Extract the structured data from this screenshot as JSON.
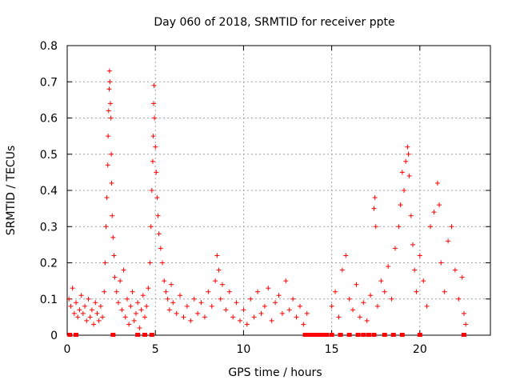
{
  "chart_data": {
    "type": "scatter",
    "title": "Day 060 of 2018, SRMTID for receiver ppte",
    "xlabel": "GPS time / hours",
    "ylabel": "SRMTID / TECUs",
    "xlim": [
      0,
      24
    ],
    "ylim": [
      0,
      0.8
    ],
    "xticks": [
      0,
      5,
      10,
      15,
      20
    ],
    "yticks": [
      0,
      0.1,
      0.2,
      0.3,
      0.4,
      0.5,
      0.6,
      0.7,
      0.8
    ],
    "xtick_labels": [
      "0",
      "5",
      "10",
      "15",
      "20"
    ],
    "ytick_labels": [
      "0",
      "0.1",
      "0.2",
      "0.3",
      "0.4",
      "0.5",
      "0.6",
      "0.7",
      "0.8"
    ],
    "grid": true,
    "color": "#ff0000",
    "marker": "plus",
    "series": [
      {
        "name": "SRMTID",
        "points": [
          [
            0.1,
            0.1
          ],
          [
            0.2,
            0.08
          ],
          [
            0.3,
            0.13
          ],
          [
            0.4,
            0.06
          ],
          [
            0.5,
            0.09
          ],
          [
            0.6,
            0.05
          ],
          [
            0.7,
            0.07
          ],
          [
            0.8,
            0.11
          ],
          [
            0.9,
            0.06
          ],
          [
            1.0,
            0.08
          ],
          [
            1.1,
            0.04
          ],
          [
            1.2,
            0.1
          ],
          [
            1.3,
            0.05
          ],
          [
            1.4,
            0.07
          ],
          [
            1.5,
            0.03
          ],
          [
            1.6,
            0.09
          ],
          [
            1.7,
            0.06
          ],
          [
            1.8,
            0.04
          ],
          [
            1.9,
            0.08
          ],
          [
            2.0,
            0.05
          ],
          [
            2.1,
            0.12
          ],
          [
            2.15,
            0.2
          ],
          [
            2.2,
            0.3
          ],
          [
            2.25,
            0.38
          ],
          [
            2.3,
            0.47
          ],
          [
            2.32,
            0.55
          ],
          [
            2.35,
            0.62
          ],
          [
            2.38,
            0.68
          ],
          [
            2.4,
            0.73
          ],
          [
            2.42,
            0.7
          ],
          [
            2.45,
            0.64
          ],
          [
            2.48,
            0.6
          ],
          [
            2.5,
            0.5
          ],
          [
            2.52,
            0.42
          ],
          [
            2.55,
            0.33
          ],
          [
            2.6,
            0.27
          ],
          [
            2.65,
            0.22
          ],
          [
            2.7,
            0.16
          ],
          [
            2.8,
            0.12
          ],
          [
            2.9,
            0.09
          ],
          [
            3.0,
            0.15
          ],
          [
            3.1,
            0.07
          ],
          [
            3.2,
            0.18
          ],
          [
            3.3,
            0.05
          ],
          [
            3.4,
            0.1
          ],
          [
            3.5,
            0.03
          ],
          [
            3.6,
            0.08
          ],
          [
            3.7,
            0.12
          ],
          [
            3.8,
            0.04
          ],
          [
            3.9,
            0.06
          ],
          [
            4.0,
            0.09
          ],
          [
            4.1,
            0.02
          ],
          [
            4.2,
            0.07
          ],
          [
            4.3,
            0.11
          ],
          [
            4.4,
            0.05
          ],
          [
            4.5,
            0.08
          ],
          [
            4.6,
            0.13
          ],
          [
            4.7,
            0.2
          ],
          [
            4.75,
            0.3
          ],
          [
            4.8,
            0.4
          ],
          [
            4.85,
            0.48
          ],
          [
            4.88,
            0.55
          ],
          [
            4.9,
            0.64
          ],
          [
            4.92,
            0.69
          ],
          [
            4.95,
            0.6
          ],
          [
            5.0,
            0.52
          ],
          [
            5.05,
            0.45
          ],
          [
            5.1,
            0.38
          ],
          [
            5.15,
            0.33
          ],
          [
            5.2,
            0.28
          ],
          [
            5.3,
            0.24
          ],
          [
            5.4,
            0.2
          ],
          [
            5.5,
            0.15
          ],
          [
            5.6,
            0.12
          ],
          [
            5.7,
            0.1
          ],
          [
            5.8,
            0.07
          ],
          [
            5.9,
            0.14
          ],
          [
            6.0,
            0.09
          ],
          [
            6.2,
            0.06
          ],
          [
            6.4,
            0.11
          ],
          [
            6.6,
            0.05
          ],
          [
            6.8,
            0.08
          ],
          [
            7.0,
            0.04
          ],
          [
            7.2,
            0.1
          ],
          [
            7.4,
            0.06
          ],
          [
            7.6,
            0.09
          ],
          [
            7.8,
            0.05
          ],
          [
            8.0,
            0.12
          ],
          [
            8.2,
            0.08
          ],
          [
            8.4,
            0.15
          ],
          [
            8.5,
            0.22
          ],
          [
            8.6,
            0.18
          ],
          [
            8.7,
            0.1
          ],
          [
            8.8,
            0.14
          ],
          [
            9.0,
            0.07
          ],
          [
            9.2,
            0.12
          ],
          [
            9.4,
            0.05
          ],
          [
            9.6,
            0.09
          ],
          [
            9.8,
            0.04
          ],
          [
            10.0,
            0.07
          ],
          [
            10.2,
            0.03
          ],
          [
            10.4,
            0.1
          ],
          [
            10.6,
            0.05
          ],
          [
            10.8,
            0.12
          ],
          [
            11.0,
            0.06
          ],
          [
            11.2,
            0.08
          ],
          [
            11.4,
            0.13
          ],
          [
            11.6,
            0.04
          ],
          [
            11.8,
            0.09
          ],
          [
            12.0,
            0.11
          ],
          [
            12.2,
            0.06
          ],
          [
            12.4,
            0.15
          ],
          [
            12.6,
            0.07
          ],
          [
            12.8,
            0.1
          ],
          [
            13.0,
            0.05
          ],
          [
            13.2,
            0.08
          ],
          [
            13.4,
            0.03
          ],
          [
            13.6,
            0.06
          ],
          [
            15.0,
            0.08
          ],
          [
            15.2,
            0.12
          ],
          [
            15.4,
            0.05
          ],
          [
            15.6,
            0.18
          ],
          [
            15.8,
            0.22
          ],
          [
            16.0,
            0.1
          ],
          [
            16.2,
            0.07
          ],
          [
            16.4,
            0.14
          ],
          [
            16.6,
            0.05
          ],
          [
            16.8,
            0.09
          ],
          [
            17.0,
            0.04
          ],
          [
            17.2,
            0.11
          ],
          [
            17.4,
            0.35
          ],
          [
            17.45,
            0.38
          ],
          [
            17.5,
            0.3
          ],
          [
            17.6,
            0.08
          ],
          [
            17.8,
            0.15
          ],
          [
            18.0,
            0.12
          ],
          [
            18.2,
            0.19
          ],
          [
            18.4,
            0.1
          ],
          [
            18.6,
            0.24
          ],
          [
            18.8,
            0.3
          ],
          [
            18.9,
            0.36
          ],
          [
            19.0,
            0.45
          ],
          [
            19.1,
            0.4
          ],
          [
            19.2,
            0.48
          ],
          [
            19.3,
            0.52
          ],
          [
            19.35,
            0.5
          ],
          [
            19.4,
            0.44
          ],
          [
            19.5,
            0.33
          ],
          [
            19.6,
            0.25
          ],
          [
            19.7,
            0.18
          ],
          [
            19.8,
            0.12
          ],
          [
            20.0,
            0.22
          ],
          [
            20.2,
            0.15
          ],
          [
            20.4,
            0.08
          ],
          [
            20.6,
            0.3
          ],
          [
            20.8,
            0.34
          ],
          [
            21.0,
            0.42
          ],
          [
            21.1,
            0.36
          ],
          [
            21.2,
            0.2
          ],
          [
            21.4,
            0.12
          ],
          [
            21.6,
            0.26
          ],
          [
            21.8,
            0.3
          ],
          [
            22.0,
            0.18
          ],
          [
            22.2,
            0.1
          ],
          [
            22.4,
            0.16
          ],
          [
            22.5,
            0.06
          ],
          [
            22.6,
            0.03
          ]
        ]
      }
    ],
    "zero_markers_x": [
      0.15,
      0.5,
      2.6,
      4.0,
      4.4,
      4.8,
      13.5,
      13.7,
      13.9,
      14.1,
      14.3,
      14.5,
      14.7,
      15.0,
      15.5,
      16.0,
      16.5,
      16.8,
      17.1,
      17.4,
      18.0,
      18.5,
      19.0,
      20.0,
      22.5
    ]
  }
}
